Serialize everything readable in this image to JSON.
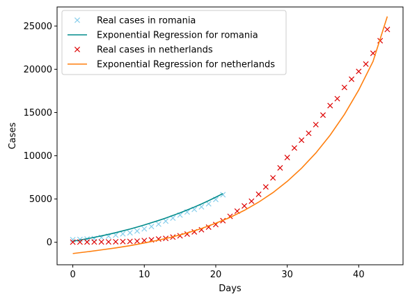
{
  "chart_data": {
    "type": "line",
    "title": "",
    "xlabel": "Days",
    "ylabel": "Cases",
    "xlim": [
      -2.2,
      46.2
    ],
    "ylim": [
      -2600,
      27200
    ],
    "xticks": [
      0,
      10,
      20,
      30,
      40
    ],
    "yticks": [
      0,
      5000,
      10000,
      15000,
      20000,
      25000
    ],
    "grid": false,
    "legend_position": "top-left",
    "series": [
      {
        "name": "Real cases in romania",
        "kind": "scatter",
        "marker": "x",
        "color": "#87ceeb",
        "x": [
          0,
          1,
          2,
          3,
          4,
          5,
          6,
          7,
          8,
          9,
          10,
          11,
          12,
          13,
          14,
          15,
          16,
          17,
          18,
          19,
          20,
          21
        ],
        "y": [
          300,
          330,
          380,
          430,
          560,
          700,
          830,
          980,
          1100,
          1300,
          1550,
          1820,
          2100,
          2450,
          2800,
          3150,
          3500,
          3800,
          4100,
          4450,
          4950,
          5500
        ]
      },
      {
        "name": "Exponential Regression for romania",
        "kind": "line",
        "color": "#008b8b",
        "x": [
          0,
          1,
          2,
          3,
          4,
          5,
          6,
          7,
          8,
          9,
          10,
          11,
          12,
          13,
          14,
          15,
          16,
          17,
          18,
          19,
          20,
          21
        ],
        "y": [
          120,
          260,
          410,
          570,
          740,
          920,
          1110,
          1320,
          1530,
          1760,
          2000,
          2260,
          2520,
          2800,
          3100,
          3400,
          3730,
          4070,
          4430,
          4810,
          5210,
          5630
        ]
      },
      {
        "name": "Real cases in netherlands",
        "kind": "scatter",
        "marker": "x",
        "color": "#dd0000",
        "x": [
          0,
          1,
          2,
          3,
          4,
          5,
          6,
          7,
          8,
          9,
          10,
          11,
          12,
          13,
          14,
          15,
          16,
          17,
          18,
          19,
          20,
          21,
          22,
          23,
          24,
          25,
          26,
          27,
          28,
          29,
          30,
          31,
          32,
          33,
          34,
          35,
          36,
          37,
          38,
          39,
          40,
          41,
          42,
          43,
          44
        ],
        "y": [
          20,
          25,
          30,
          35,
          40,
          50,
          60,
          80,
          100,
          130,
          200,
          280,
          380,
          450,
          600,
          750,
          950,
          1200,
          1450,
          1750,
          2050,
          2500,
          3000,
          3600,
          4200,
          4750,
          5550,
          6400,
          7450,
          8600,
          9800,
          10900,
          11800,
          12600,
          13600,
          14700,
          15800,
          16600,
          17900,
          18850,
          19750,
          20600,
          21850,
          23300,
          24600
        ]
      },
      {
        "name": "Exponential Regression for netherlands",
        "kind": "line",
        "color": "#ff7f0e",
        "x": [
          0,
          2,
          4,
          6,
          8,
          10,
          12,
          14,
          16,
          18,
          20,
          22,
          24,
          26,
          28,
          30,
          32,
          34,
          36,
          38,
          40,
          42,
          44
        ],
        "y": [
          -1300,
          -1100,
          -880,
          -650,
          -390,
          -80,
          250,
          630,
          1080,
          1590,
          2200,
          2880,
          3690,
          4640,
          5740,
          7040,
          8560,
          10320,
          12380,
          14780,
          17600,
          20900,
          26100
        ]
      }
    ]
  }
}
